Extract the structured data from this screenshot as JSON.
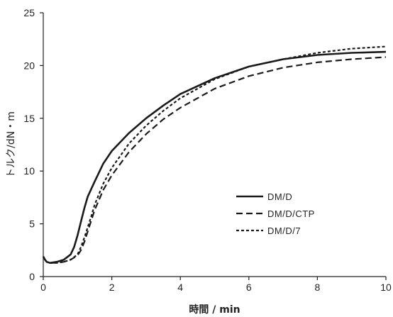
{
  "chart_data": {
    "type": "line",
    "title": "",
    "xlabel": "時間 / min",
    "ylabel": "トルク/dN・m",
    "xlim": [
      0,
      10
    ],
    "ylim": [
      0,
      25
    ],
    "xticks": [
      "0",
      "2",
      "4",
      "6",
      "8",
      "10"
    ],
    "yticks": [
      "0",
      "5",
      "10",
      "15",
      "20",
      "25"
    ],
    "grid": false,
    "legend_position": "center-right",
    "series": [
      {
        "name": "DM/D",
        "style": "solid",
        "x": [
          0,
          0.05,
          0.1,
          0.2,
          0.4,
          0.6,
          0.8,
          0.9,
          1.0,
          1.1,
          1.2,
          1.3,
          1.5,
          1.75,
          2.0,
          2.5,
          3.0,
          3.5,
          4.0,
          5.0,
          6.0,
          7.0,
          8.0,
          9.0,
          10.0
        ],
        "y": [
          1.9,
          1.6,
          1.4,
          1.3,
          1.4,
          1.6,
          2.1,
          2.8,
          3.9,
          5.2,
          6.5,
          7.6,
          9.0,
          10.7,
          11.9,
          13.6,
          15.0,
          16.2,
          17.3,
          18.8,
          19.9,
          20.6,
          21.0,
          21.2,
          21.3
        ]
      },
      {
        "name": "DM/D/CTP",
        "style": "dashed",
        "x": [
          0,
          0.05,
          0.1,
          0.2,
          0.4,
          0.6,
          0.8,
          1.0,
          1.1,
          1.2,
          1.3,
          1.4,
          1.5,
          1.75,
          2.0,
          2.5,
          3.0,
          3.5,
          4.0,
          5.0,
          6.0,
          7.0,
          8.0,
          9.0,
          10.0
        ],
        "y": [
          1.9,
          1.6,
          1.4,
          1.3,
          1.3,
          1.4,
          1.6,
          2.0,
          2.5,
          3.3,
          4.3,
          5.3,
          6.3,
          8.2,
          9.6,
          11.8,
          13.5,
          14.9,
          16.0,
          17.8,
          19.0,
          19.8,
          20.3,
          20.6,
          20.8
        ]
      },
      {
        "name": "DM/D/7",
        "style": "dotted",
        "x": [
          0,
          0.05,
          0.1,
          0.2,
          0.4,
          0.6,
          0.8,
          1.0,
          1.1,
          1.2,
          1.3,
          1.4,
          1.5,
          1.75,
          2.0,
          2.5,
          3.0,
          3.5,
          4.0,
          5.0,
          6.0,
          7.0,
          8.0,
          9.0,
          10.0
        ],
        "y": [
          1.9,
          1.6,
          1.4,
          1.3,
          1.3,
          1.4,
          1.6,
          2.1,
          2.8,
          3.7,
          4.7,
          5.7,
          6.8,
          8.8,
          10.3,
          12.6,
          14.3,
          15.7,
          16.9,
          18.7,
          19.9,
          20.6,
          21.2,
          21.6,
          21.8
        ]
      }
    ]
  }
}
